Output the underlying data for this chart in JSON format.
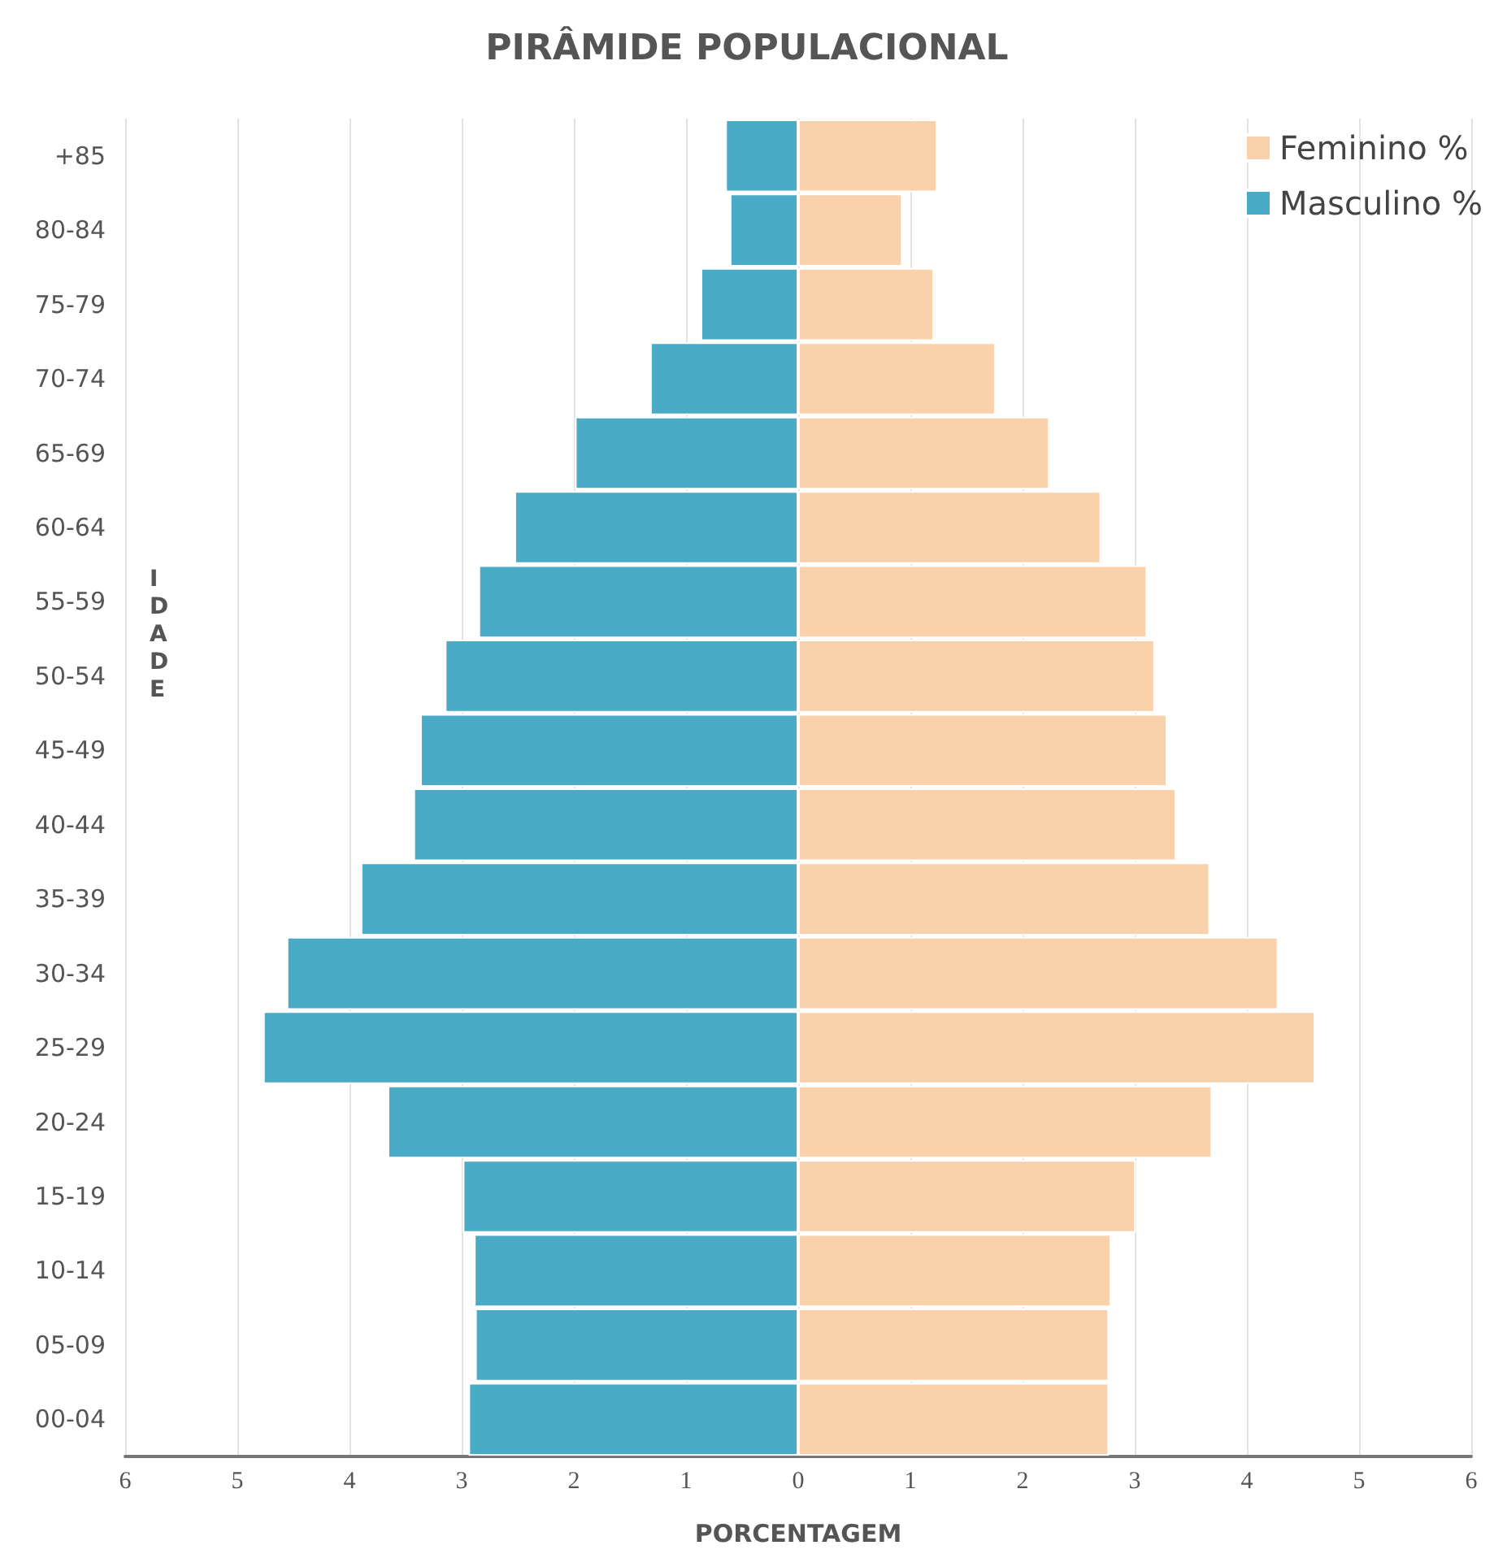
{
  "chart_data": {
    "type": "bar",
    "orientation": "horizontal",
    "title": "PIRÂMIDE POPULACIONAL",
    "xlabel": "PORCENTAGEM",
    "ylabel": "IDADE",
    "categories": [
      "+85",
      "80-84",
      "75-79",
      "70-74",
      "65-69",
      "60-64",
      "55-59",
      "50-54",
      "45-49",
      "40-44",
      "35-39",
      "30-34",
      "25-29",
      "20-24",
      "15-19",
      "10-14",
      "05-09",
      "00-04"
    ],
    "series": [
      {
        "name": "Feminino %",
        "color": "#f9d1aa",
        "values": [
          1.24,
          0.93,
          1.21,
          1.76,
          2.24,
          2.7,
          3.11,
          3.18,
          3.29,
          3.37,
          3.67,
          4.28,
          4.61,
          3.69,
          3.01,
          2.79,
          2.77,
          2.77
        ]
      },
      {
        "name": "Masculino %",
        "color": "#4aabc6",
        "values": [
          -0.65,
          -0.61,
          -0.87,
          -1.32,
          -1.99,
          -2.53,
          -2.85,
          -3.15,
          -3.37,
          -3.43,
          -3.9,
          -4.56,
          -4.77,
          -3.66,
          -2.99,
          -2.89,
          -2.88,
          -2.94
        ]
      }
    ],
    "xlim": [
      -6,
      6
    ],
    "xticks": [
      {
        "value": -6,
        "label": "6"
      },
      {
        "value": -5,
        "label": "5"
      },
      {
        "value": -4,
        "label": "4"
      },
      {
        "value": -3,
        "label": "3"
      },
      {
        "value": -2,
        "label": "2"
      },
      {
        "value": -1,
        "label": "1"
      },
      0,
      1,
      2,
      3,
      4,
      5,
      6
    ],
    "grid": "x",
    "legend": "top right",
    "stacked": true
  }
}
